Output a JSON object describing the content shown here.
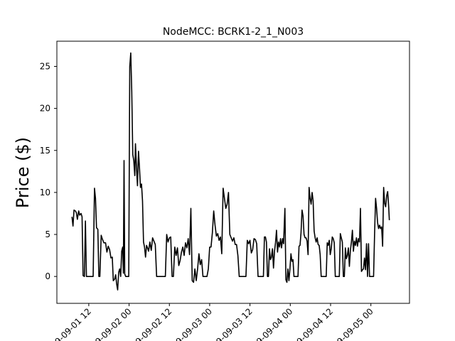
{
  "chart_data": {
    "type": "line",
    "title": "NodeMCC: BCRK1-2_1_N003",
    "ylabel": "Price ($)",
    "xlabel": "",
    "x_unit": "hour",
    "x_start": "2019-09-01 00:00",
    "x_ticks": [
      {
        "x": 12,
        "label": "2019-09-01 12"
      },
      {
        "x": 24,
        "label": "2019-09-02 00"
      },
      {
        "x": 36,
        "label": "2019-09-02 12"
      },
      {
        "x": 48,
        "label": "2019-09-03 00"
      },
      {
        "x": 60,
        "label": "2019-09-03 12"
      },
      {
        "x": 72,
        "label": "2019-09-04 00"
      },
      {
        "x": 84,
        "label": "2019-09-04 12"
      },
      {
        "x": 96,
        "label": "2019-09-05 00"
      }
    ],
    "y_ticks": [
      0,
      5,
      10,
      15,
      20,
      25
    ],
    "xlim": [
      2.5,
      107.5
    ],
    "ylim": [
      -3.2,
      28
    ],
    "grid": false,
    "legend": "none",
    "color": "#000000",
    "series": [
      {
        "name": "",
        "points": [
          [
            7.0,
            7.1
          ],
          [
            7.3,
            6.0
          ],
          [
            7.6,
            7.9
          ],
          [
            8.0,
            7.8
          ],
          [
            8.3,
            7.6
          ],
          [
            8.6,
            6.8
          ],
          [
            9.0,
            7.8
          ],
          [
            9.3,
            7.3
          ],
          [
            9.7,
            7.5
          ],
          [
            10.0,
            7.1
          ],
          [
            10.3,
            0.1
          ],
          [
            10.7,
            0.0
          ],
          [
            11.0,
            6.6
          ],
          [
            11.3,
            0.0
          ],
          [
            12.0,
            0.0
          ],
          [
            13.0,
            0.0
          ],
          [
            13.3,
            0.0
          ],
          [
            13.7,
            10.5
          ],
          [
            14.0,
            9.3
          ],
          [
            14.3,
            5.8
          ],
          [
            14.7,
            5.6
          ],
          [
            15.0,
            0.0
          ],
          [
            15.3,
            0.0
          ],
          [
            15.7,
            4.9
          ],
          [
            16.0,
            4.5
          ],
          [
            16.5,
            4.0
          ],
          [
            17.0,
            4.0
          ],
          [
            17.4,
            2.9
          ],
          [
            17.8,
            3.6
          ],
          [
            18.2,
            3.2
          ],
          [
            18.6,
            2.2
          ],
          [
            19.0,
            2.3
          ],
          [
            19.3,
            -0.5
          ],
          [
            19.7,
            -0.3
          ],
          [
            20.0,
            0.2
          ],
          [
            20.3,
            -0.9
          ],
          [
            20.6,
            -1.6
          ],
          [
            20.9,
            0.5
          ],
          [
            21.2,
            0.9
          ],
          [
            21.5,
            0.0
          ],
          [
            21.8,
            3.0
          ],
          [
            22.1,
            3.5
          ],
          [
            22.3,
            0.4
          ],
          [
            22.5,
            13.8
          ],
          [
            22.7,
            0.3
          ],
          [
            23.0,
            0.0
          ],
          [
            23.5,
            0.0
          ],
          [
            23.9,
            0.0
          ],
          [
            24.2,
            25.0
          ],
          [
            24.5,
            26.6
          ],
          [
            24.8,
            22.0
          ],
          [
            25.1,
            14.5
          ],
          [
            25.4,
            13.8
          ],
          [
            25.7,
            12.0
          ],
          [
            25.9,
            15.8
          ],
          [
            26.2,
            13.0
          ],
          [
            26.5,
            10.8
          ],
          [
            26.8,
            14.9
          ],
          [
            27.1,
            12.9
          ],
          [
            27.4,
            10.6
          ],
          [
            27.7,
            11.0
          ],
          [
            28.0,
            9.0
          ],
          [
            28.3,
            4.1
          ],
          [
            28.6,
            3.5
          ],
          [
            28.9,
            2.3
          ],
          [
            29.2,
            3.7
          ],
          [
            29.5,
            3.4
          ],
          [
            29.8,
            3.0
          ],
          [
            30.2,
            4.1
          ],
          [
            30.6,
            3.1
          ],
          [
            31.0,
            4.6
          ],
          [
            31.4,
            4.2
          ],
          [
            31.8,
            3.8
          ],
          [
            32.2,
            0.0
          ],
          [
            33.0,
            0.0
          ],
          [
            34.0,
            0.0
          ],
          [
            34.8,
            0.0
          ],
          [
            35.2,
            5.0
          ],
          [
            35.6,
            4.1
          ],
          [
            36.0,
            4.6
          ],
          [
            36.4,
            4.7
          ],
          [
            36.8,
            0.0
          ],
          [
            37.2,
            0.0
          ],
          [
            37.6,
            3.5
          ],
          [
            38.0,
            2.5
          ],
          [
            38.4,
            3.4
          ],
          [
            38.8,
            1.3
          ],
          [
            39.2,
            1.9
          ],
          [
            39.6,
            2.9
          ],
          [
            40.0,
            3.5
          ],
          [
            40.4,
            2.5
          ],
          [
            40.8,
            4.0
          ],
          [
            41.2,
            3.4
          ],
          [
            41.6,
            4.5
          ],
          [
            42.0,
            2.6
          ],
          [
            42.4,
            8.1
          ],
          [
            42.8,
            -0.5
          ],
          [
            43.2,
            -0.7
          ],
          [
            43.6,
            0.9
          ],
          [
            44.0,
            -0.5
          ],
          [
            44.4,
            0.9
          ],
          [
            44.8,
            2.7
          ],
          [
            45.2,
            1.4
          ],
          [
            45.6,
            2.0
          ],
          [
            46.0,
            0.0
          ],
          [
            46.4,
            0.0
          ],
          [
            46.8,
            0.0
          ],
          [
            47.2,
            0.0
          ],
          [
            47.6,
            0.9
          ],
          [
            48.0,
            3.5
          ],
          [
            48.4,
            3.5
          ],
          [
            48.8,
            5.2
          ],
          [
            49.2,
            7.8
          ],
          [
            49.6,
            6.1
          ],
          [
            50.0,
            4.8
          ],
          [
            50.4,
            5.1
          ],
          [
            50.8,
            4.3
          ],
          [
            51.2,
            4.7
          ],
          [
            51.6,
            2.7
          ],
          [
            52.0,
            10.5
          ],
          [
            52.4,
            9.3
          ],
          [
            52.8,
            8.1
          ],
          [
            53.2,
            8.6
          ],
          [
            53.6,
            10.0
          ],
          [
            54.0,
            5.0
          ],
          [
            54.4,
            4.6
          ],
          [
            54.8,
            4.2
          ],
          [
            55.2,
            4.6
          ],
          [
            55.6,
            3.8
          ],
          [
            56.0,
            3.8
          ],
          [
            56.4,
            2.5
          ],
          [
            56.8,
            0.0
          ],
          [
            57.2,
            0.0
          ],
          [
            57.6,
            0.0
          ],
          [
            58.0,
            0.0
          ],
          [
            58.4,
            0.0
          ],
          [
            58.8,
            0.0
          ],
          [
            59.2,
            4.3
          ],
          [
            59.6,
            3.9
          ],
          [
            60.0,
            4.3
          ],
          [
            60.4,
            2.8
          ],
          [
            60.8,
            3.2
          ],
          [
            61.2,
            4.5
          ],
          [
            61.6,
            4.4
          ],
          [
            62.0,
            3.9
          ],
          [
            62.4,
            0.0
          ],
          [
            62.8,
            0.0
          ],
          [
            63.2,
            0.0
          ],
          [
            63.6,
            0.0
          ],
          [
            64.0,
            0.0
          ],
          [
            64.3,
            4.7
          ],
          [
            64.6,
            4.7
          ],
          [
            64.9,
            4.1
          ],
          [
            65.2,
            0.0
          ],
          [
            65.5,
            0.0
          ],
          [
            65.8,
            3.3
          ],
          [
            66.1,
            2.0
          ],
          [
            66.4,
            2.3
          ],
          [
            66.7,
            3.3
          ],
          [
            67.0,
            1.0
          ],
          [
            67.3,
            3.0
          ],
          [
            67.6,
            4.0
          ],
          [
            67.9,
            5.5
          ],
          [
            68.2,
            2.9
          ],
          [
            68.5,
            4.1
          ],
          [
            68.8,
            3.5
          ],
          [
            69.1,
            4.5
          ],
          [
            69.4,
            3.4
          ],
          [
            69.7,
            4.5
          ],
          [
            70.0,
            3.9
          ],
          [
            70.4,
            8.1
          ],
          [
            70.7,
            -0.4
          ],
          [
            71.0,
            -0.7
          ],
          [
            71.3,
            0.9
          ],
          [
            71.6,
            -0.5
          ],
          [
            71.9,
            0.9
          ],
          [
            72.2,
            2.7
          ],
          [
            72.5,
            1.8
          ],
          [
            72.8,
            2.0
          ],
          [
            73.1,
            0.0
          ],
          [
            73.4,
            0.0
          ],
          [
            73.7,
            0.0
          ],
          [
            74.0,
            0.0
          ],
          [
            74.3,
            0.0
          ],
          [
            74.6,
            3.6
          ],
          [
            74.9,
            3.7
          ],
          [
            75.2,
            5.2
          ],
          [
            75.5,
            7.9
          ],
          [
            75.8,
            7.2
          ],
          [
            76.1,
            5.0
          ],
          [
            76.4,
            4.6
          ],
          [
            76.7,
            4.6
          ],
          [
            77.0,
            4.2
          ],
          [
            77.3,
            2.6
          ],
          [
            77.6,
            10.6
          ],
          [
            77.9,
            9.3
          ],
          [
            78.2,
            8.6
          ],
          [
            78.5,
            10.0
          ],
          [
            78.8,
            9.0
          ],
          [
            79.1,
            5.4
          ],
          [
            79.4,
            4.6
          ],
          [
            79.7,
            4.1
          ],
          [
            80.0,
            4.6
          ],
          [
            80.3,
            3.8
          ],
          [
            80.6,
            3.7
          ],
          [
            80.9,
            2.6
          ],
          [
            81.2,
            0.0
          ],
          [
            81.5,
            0.0
          ],
          [
            81.8,
            0.0
          ],
          [
            82.1,
            0.0
          ],
          [
            82.4,
            0.0
          ],
          [
            82.7,
            0.0
          ],
          [
            83.0,
            4.0
          ],
          [
            83.3,
            3.7
          ],
          [
            83.6,
            4.3
          ],
          [
            83.9,
            2.6
          ],
          [
            84.2,
            3.3
          ],
          [
            84.5,
            4.7
          ],
          [
            84.8,
            4.5
          ],
          [
            85.1,
            4.0
          ],
          [
            85.4,
            0.0
          ],
          [
            85.7,
            0.0
          ],
          [
            86.0,
            0.0
          ],
          [
            86.3,
            0.0
          ],
          [
            86.6,
            0.0
          ],
          [
            86.9,
            5.1
          ],
          [
            87.2,
            4.6
          ],
          [
            87.5,
            4.1
          ],
          [
            87.8,
            0.0
          ],
          [
            88.1,
            0.0
          ],
          [
            88.4,
            3.4
          ],
          [
            88.7,
            2.1
          ],
          [
            89.0,
            2.5
          ],
          [
            89.3,
            3.4
          ],
          [
            89.6,
            1.2
          ],
          [
            89.9,
            3.1
          ],
          [
            90.2,
            4.1
          ],
          [
            90.5,
            5.5
          ],
          [
            90.8,
            3.0
          ],
          [
            91.1,
            4.2
          ],
          [
            91.4,
            3.7
          ],
          [
            91.7,
            4.6
          ],
          [
            92.0,
            3.6
          ],
          [
            92.3,
            4.5
          ],
          [
            92.6,
            4.1
          ],
          [
            92.9,
            8.1
          ],
          [
            93.2,
            0.6
          ],
          [
            93.5,
            0.8
          ],
          [
            93.8,
            0.9
          ],
          [
            94.1,
            2.2
          ],
          [
            94.4,
            0.8
          ],
          [
            94.7,
            3.9
          ],
          [
            95.0,
            0.0
          ],
          [
            95.3,
            3.9
          ],
          [
            95.6,
            0.0
          ],
          [
            95.9,
            0.0
          ],
          [
            96.2,
            0.0
          ],
          [
            96.5,
            0.0
          ],
          [
            96.8,
            0.0
          ],
          [
            97.1,
            5.0
          ],
          [
            97.4,
            9.3
          ],
          [
            97.7,
            8.1
          ],
          [
            98.0,
            6.4
          ],
          [
            98.3,
            5.7
          ],
          [
            98.6,
            6.1
          ],
          [
            98.9,
            5.7
          ],
          [
            99.2,
            5.9
          ],
          [
            99.5,
            3.6
          ],
          [
            99.8,
            10.6
          ],
          [
            100.1,
            8.7
          ],
          [
            100.4,
            8.3
          ],
          [
            100.7,
            9.6
          ],
          [
            101.0,
            10.1
          ],
          [
            101.3,
            8.3
          ],
          [
            101.5,
            6.7
          ]
        ]
      }
    ]
  }
}
